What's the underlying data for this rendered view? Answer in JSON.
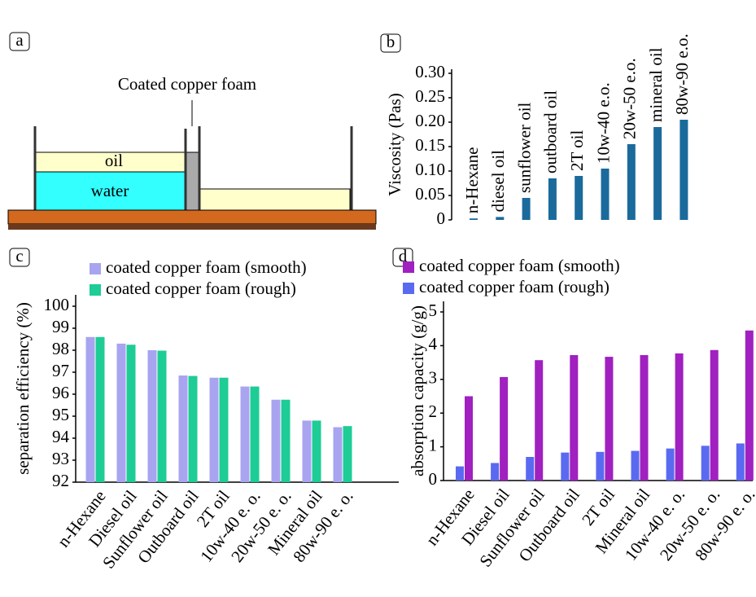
{
  "diagram": {
    "panel": "a",
    "foam_label": "Coated copper foam",
    "oil_label": "oil",
    "water_label": "water"
  },
  "chart_data": [
    {
      "type": "bar",
      "panel": "b",
      "ylabel": "Viscosity (Pas)",
      "color": "#1b6a9c",
      "categories": [
        "n-Hexane",
        "diesel oil",
        "sunflower oil",
        "outboard oil",
        "2T oil",
        "10w-40 e.o.",
        "20w-50 e.o.",
        "mineral oil",
        "80w-90 e.o."
      ],
      "values": [
        0.003,
        0.006,
        0.045,
        0.085,
        0.09,
        0.105,
        0.155,
        0.19,
        0.205
      ],
      "ylim": [
        0,
        0.3
      ],
      "yticks": [
        0,
        0.05,
        {
          "value": 0.1,
          "label": "0.10"
        },
        0.15,
        {
          "value": 0.2,
          "label": "0.20"
        },
        0.25,
        {
          "value": 0.3,
          "label": "0.30"
        }
      ]
    },
    {
      "type": "bar",
      "panel": "c",
      "ylabel": "separation efficiency (%)",
      "categories": [
        "n-Hexane",
        "Diesel oil",
        "Sunflower oil",
        "Outboard oil",
        "2T oil",
        "10w-40 e. o.",
        "20w-50 e. o.",
        "Mineral oil",
        "80w-90 e. o."
      ],
      "series": [
        {
          "name": "coated copper foam (smooth)",
          "color": "#a8a4f0",
          "values": [
            98.6,
            98.3,
            98.0,
            96.85,
            96.75,
            96.35,
            95.75,
            94.8,
            94.5
          ]
        },
        {
          "name": "coated copper foam (rough)",
          "color": "#1ecc95",
          "values": [
            98.6,
            98.25,
            97.98,
            96.83,
            96.75,
            96.35,
            95.75,
            94.8,
            94.55
          ]
        }
      ],
      "ylim": [
        92,
        100
      ],
      "yticks": [
        92,
        93,
        94,
        95,
        96,
        97,
        98,
        99,
        100
      ]
    },
    {
      "type": "bar",
      "panel": "d",
      "ylabel": "absorption capacity (g/g)",
      "categories": [
        "n-Hexane",
        "Diesel oil",
        "Sunflower oil",
        "Outboard oil",
        "2T oil",
        "Mineral oil",
        "10w-40 e. o.",
        "20w-50 e. o.",
        "80w-90 e. o."
      ],
      "series": [
        {
          "name": "coated copper foam (smooth)",
          "color": "#a020c0",
          "values": [
            2.5,
            3.07,
            3.57,
            3.72,
            3.67,
            3.72,
            3.77,
            3.87,
            4.45
          ]
        },
        {
          "name": "coated copper foam (rough)",
          "color": "#5a6af0",
          "values": [
            0.42,
            0.52,
            0.7,
            0.83,
            0.85,
            0.88,
            0.95,
            1.03,
            1.1
          ]
        }
      ],
      "ylim": [
        0,
        5
      ],
      "yticks": [
        0,
        1,
        2,
        3,
        4,
        5
      ]
    }
  ]
}
